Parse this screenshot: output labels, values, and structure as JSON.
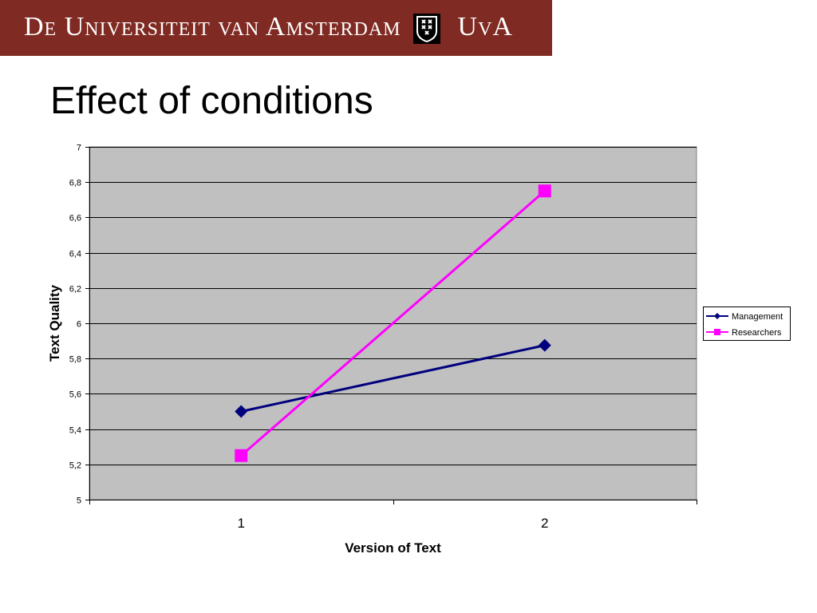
{
  "header": {
    "institution": "De Universiteit van Amsterdam",
    "abbreviation": "UvA",
    "background_color": "#7f2a22"
  },
  "slide": {
    "title": "Effect of conditions"
  },
  "chart_data": {
    "type": "line",
    "x": [
      "1",
      "2"
    ],
    "series": [
      {
        "name": "Management",
        "values": [
          5.5,
          5.875
        ],
        "color": "#00007f",
        "marker": "diamond"
      },
      {
        "name": "Researchers",
        "values": [
          5.25,
          6.75
        ],
        "color": "#ff00ff",
        "marker": "square"
      }
    ],
    "xlabel": "Version of Text",
    "ylabel": "Text Quality",
    "ylim": [
      5,
      7
    ],
    "yticks": [
      "5",
      "5,2",
      "5,4",
      "5,6",
      "5,8",
      "6",
      "6,2",
      "6,4",
      "6,6",
      "6,8",
      "7"
    ],
    "ytick_values": [
      5,
      5.2,
      5.4,
      5.6,
      5.8,
      6,
      6.2,
      6.4,
      6.6,
      6.8,
      7
    ],
    "grid": true,
    "plot_background": "#c0c0c0",
    "legend": "right"
  }
}
